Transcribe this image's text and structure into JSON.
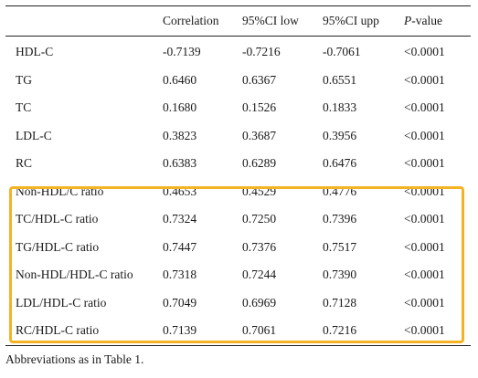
{
  "table": {
    "headers": [
      "",
      "Correlation",
      "95%CI low",
      "95%CI upp",
      "-value"
    ],
    "header_p_letter": "P",
    "rows": [
      {
        "label": "HDL-C",
        "values": [
          "-0.7139",
          "-0.7216",
          "-0.7061",
          "<0.0001"
        ]
      },
      {
        "label": "TG",
        "values": [
          "0.6460",
          "0.6367",
          "0.6551",
          "<0.0001"
        ]
      },
      {
        "label": "TC",
        "values": [
          "0.1680",
          "0.1526",
          "0.1833",
          "<0.0001"
        ]
      },
      {
        "label": "LDL-C",
        "values": [
          "0.3823",
          "0.3687",
          "0.3956",
          "<0.0001"
        ]
      },
      {
        "label": "RC",
        "values": [
          "0.6383",
          "0.6289",
          "0.6476",
          "<0.0001"
        ]
      },
      {
        "label": "Non-HDL/C ratio",
        "values": [
          "0.4653",
          "0.4529",
          "0.4776",
          "<0.0001"
        ]
      },
      {
        "label": "TC/HDL-C ratio",
        "values": [
          "0.7324",
          "0.7250",
          "0.7396",
          "<0.0001"
        ]
      },
      {
        "label": "TG/HDL-C ratio",
        "values": [
          "0.7447",
          "0.7376",
          "0.7517",
          "<0.0001"
        ]
      },
      {
        "label": "Non-HDL/HDL-C ratio",
        "values": [
          "0.7318",
          "0.7244",
          "0.7390",
          "<0.0001"
        ]
      },
      {
        "label": "LDL/HDL-C ratio",
        "values": [
          "0.7049",
          "0.6969",
          "0.7128",
          "<0.0001"
        ]
      },
      {
        "label": "RC/HDL-C ratio",
        "values": [
          "0.7139",
          "0.7061",
          "0.7216",
          "<0.0001"
        ]
      }
    ],
    "highlight_color": "#f5b324"
  },
  "footnote": "Abbreviations as in Table 1."
}
